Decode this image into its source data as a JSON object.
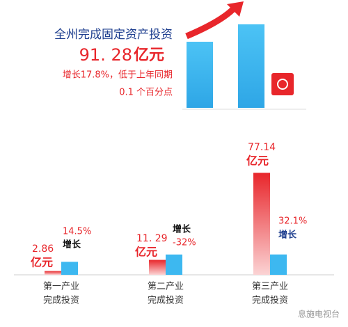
{
  "header": {
    "title": "全州完成固定资产投资",
    "total": "91. 28",
    "unit": "亿元",
    "growth_line1": "增长17.8%，低于上年同期",
    "growth_line2": "0.1 个百分点"
  },
  "chart_data": {
    "type": "bar",
    "categories": [
      [
        "第一产业",
        "完成投资"
      ],
      [
        "第二产业",
        "完成投资"
      ],
      [
        "第三产业",
        "完成投资"
      ]
    ],
    "investment": {
      "values": [
        2.86,
        11.29,
        77.14
      ],
      "value_labels": [
        "2.86",
        "11. 29",
        "77.14"
      ],
      "unit": "亿元",
      "color": "#e8262b"
    },
    "growth": {
      "values": [
        14.5,
        -32,
        32.1
      ],
      "value_labels": [
        "14.5%",
        "-32%",
        "32.1%"
      ],
      "word": "增长",
      "color": "#3db8f0"
    }
  },
  "watermark": "息施电视台"
}
